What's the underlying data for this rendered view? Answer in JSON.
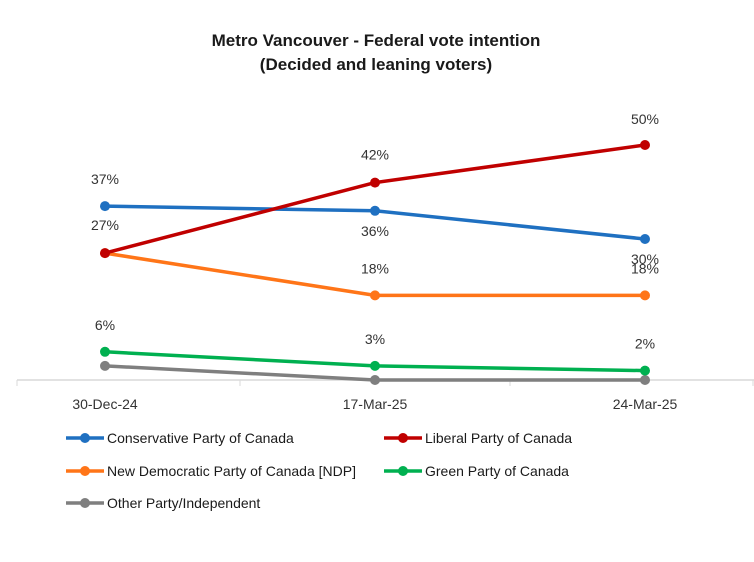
{
  "chart_data": {
    "type": "line",
    "title": "Metro Vancouver - Federal vote intention",
    "subtitle": "(Decided and leaning voters)",
    "categories": [
      "30-Dec-24",
      "17-Mar-25",
      "24-Mar-25"
    ],
    "ylim": [
      0,
      55
    ],
    "grid": false,
    "legend_position": "bottom",
    "series": [
      {
        "name": "Conservative Party of Canada",
        "color": "#1f70c1",
        "values": [
          37,
          36,
          30
        ],
        "labels": [
          "37%",
          "36%",
          "30%"
        ]
      },
      {
        "name": "Liberal Party of Canada",
        "color": "#c00000",
        "values": [
          27,
          42,
          50
        ],
        "labels": [
          "",
          "42%",
          "50%"
        ]
      },
      {
        "name": "New Democratic Party of Canada [NDP]",
        "color": "#ff7518",
        "values": [
          27,
          18,
          18
        ],
        "labels": [
          "27%",
          "18%",
          "18%"
        ]
      },
      {
        "name": "Green Party of Canada",
        "color": "#00b050",
        "values": [
          6,
          3,
          2
        ],
        "labels": [
          "6%",
          "3%",
          "2%"
        ]
      },
      {
        "name": "Other Party/Independent",
        "color": "#7f7f7f",
        "values": [
          3,
          0,
          0
        ],
        "labels": [
          "",
          "",
          ""
        ]
      }
    ]
  }
}
